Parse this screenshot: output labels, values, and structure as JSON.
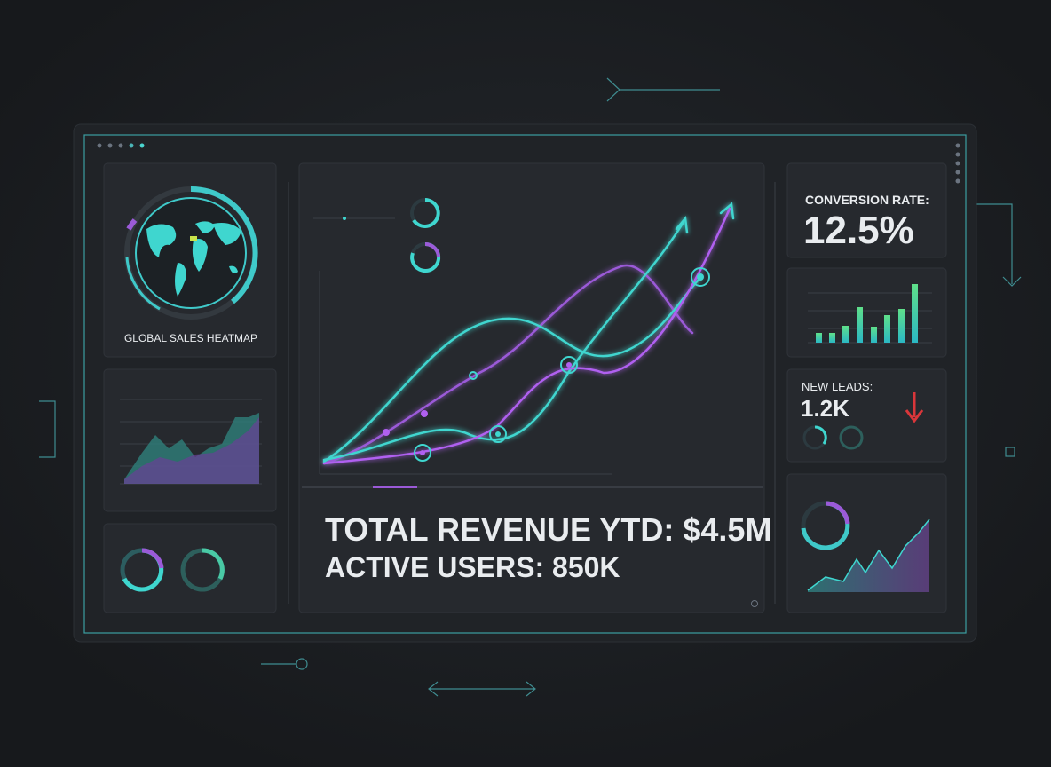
{
  "heatmap": {
    "title": "GLOBAL SALES HEATMAP"
  },
  "summary": {
    "revenue": "TOTAL REVENUE YTD: $4.5M",
    "users": "ACTIVE USERS: 850K"
  },
  "conversion": {
    "label": "CONVERSION RATE:",
    "value": "12.5%"
  },
  "leads": {
    "label": "NEW LEADS:",
    "value": "1.2K"
  }
}
